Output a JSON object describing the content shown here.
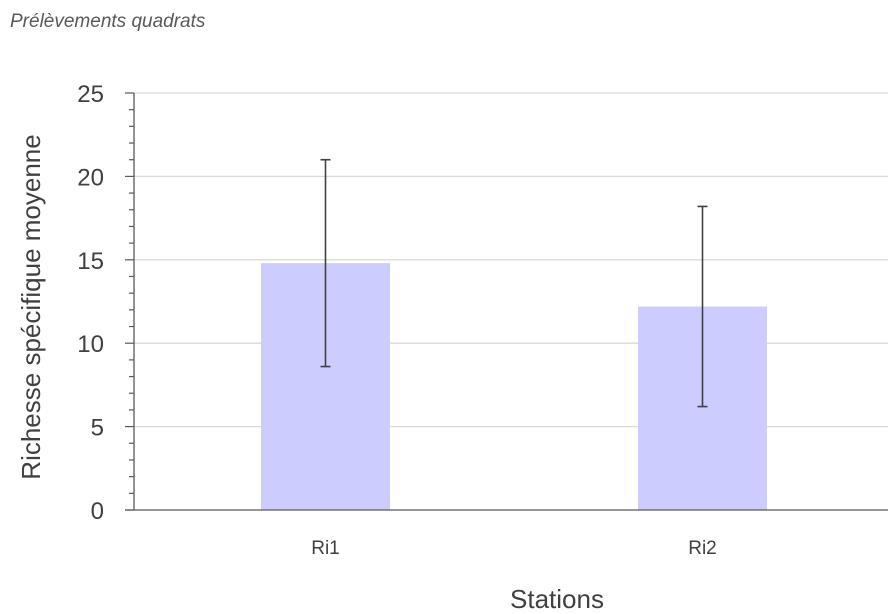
{
  "subtitle": "Prélèvements quadrats",
  "colors": {
    "bar": "#ccccff",
    "error_bar": "#404040",
    "grid": "#d9d9d9",
    "axis": "#595959"
  },
  "chart_data": {
    "type": "bar",
    "categories": [
      "Ri1",
      "Ri2"
    ],
    "values": [
      14.8,
      12.2
    ],
    "error": [
      6.2,
      6.0
    ],
    "xlabel": "Stations",
    "ylabel": "Richesse spécifique moyenne",
    "ylim": [
      0,
      25
    ],
    "yticks": [
      0,
      5,
      10,
      15,
      20,
      25
    ],
    "grid": true,
    "legend": false
  }
}
